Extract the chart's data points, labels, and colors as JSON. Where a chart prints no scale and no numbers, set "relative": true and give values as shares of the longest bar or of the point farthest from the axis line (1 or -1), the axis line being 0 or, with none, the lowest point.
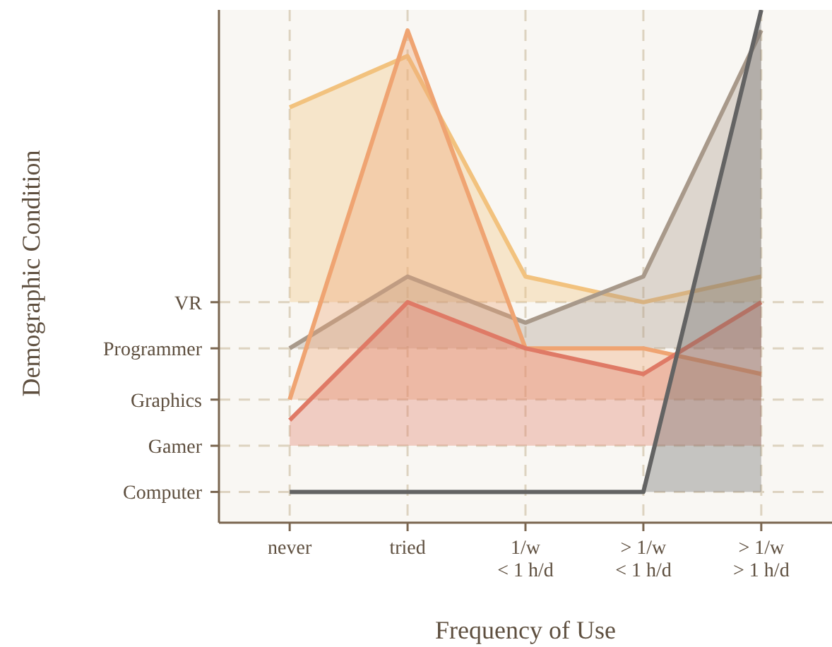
{
  "chart_data": {
    "type": "area",
    "xlabel": "Frequency of Use",
    "annotations": [
      "Demographic Condition"
    ],
    "categories": [
      "never",
      "tried",
      "1/w\n< 1 h/d",
      "> 1/w\n< 1 h/d",
      "> 1/w\n> 1 h/d"
    ],
    "relative": true,
    "grid": "x",
    "line_style": "solid",
    "ref_lines": [
      {
        "axis": "y",
        "value": 0.43,
        "label": "VR",
        "color": "#ddd3c0",
        "line_style": "dashed"
      },
      {
        "axis": "y",
        "value": 0.34,
        "label": "Programmer",
        "color": "#ddd3c0",
        "line_style": "dashed"
      },
      {
        "axis": "y",
        "value": 0.24,
        "label": "Graphics",
        "color": "#ddd3c0",
        "line_style": "dashed"
      },
      {
        "axis": "y",
        "value": 0.15,
        "label": "Gamer",
        "color": "#ddd3c0",
        "line_style": "dashed"
      },
      {
        "axis": "y",
        "value": 0.06,
        "label": "Computer",
        "color": "#ddd3c0",
        "line_style": "dashed"
      }
    ],
    "series": [
      {
        "color": "#f2c27e",
        "values": [
          0.81,
          0.91,
          0.48,
          0.43,
          0.48
        ]
      },
      {
        "color": "#a8998a",
        "values": [
          0.34,
          0.48,
          0.39,
          0.48,
          0.96
        ]
      },
      {
        "color": "#efa472",
        "values": [
          0.24,
          0.96,
          0.34,
          0.34,
          0.29
        ]
      },
      {
        "color": "#df7a66",
        "values": [
          0.2,
          0.43,
          0.34,
          0.29,
          0.43
        ]
      },
      {
        "color": "#636363",
        "values": [
          0.06,
          0.06,
          0.06,
          0.06,
          1
        ]
      }
    ]
  }
}
